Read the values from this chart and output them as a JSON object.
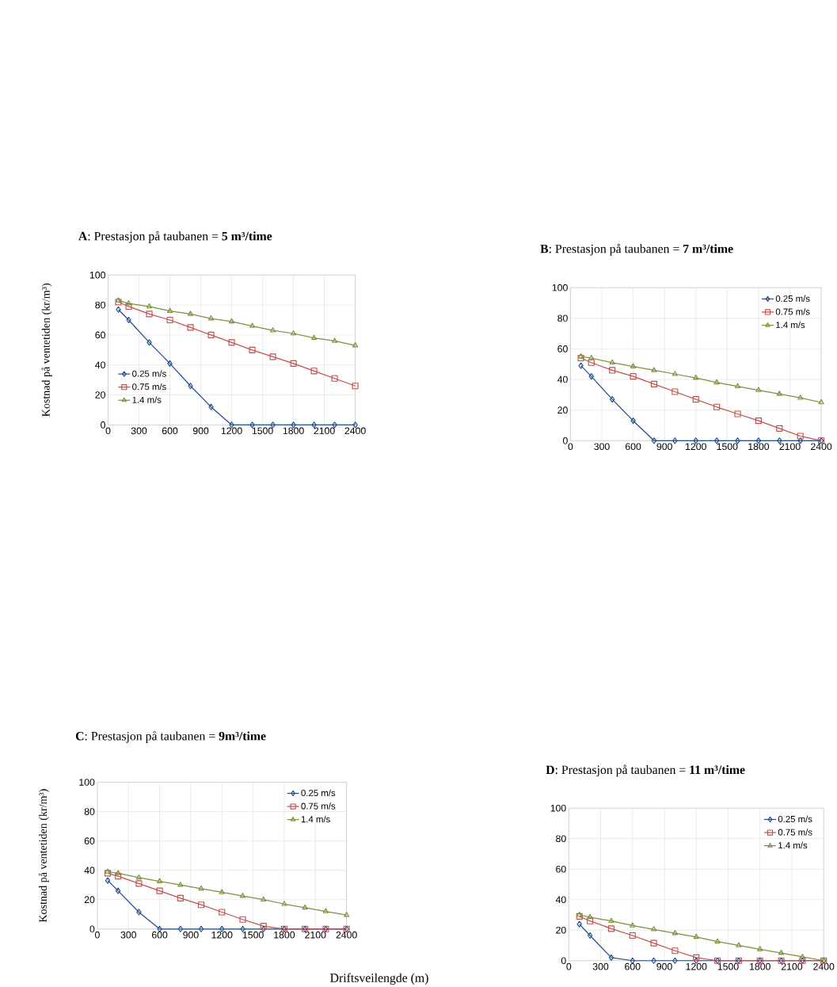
{
  "chart_data": [
    {
      "type": "line",
      "title": "**A**:  Prestasjon på taubanen = **5 m³/time**",
      "ylabel": "Kostnad på ventetiden (kr/m³)",
      "x": [
        100,
        200,
        400,
        600,
        800,
        1000,
        1200,
        1400,
        1600,
        1800,
        2000,
        2200,
        2400
      ],
      "xlim": [
        0,
        2400
      ],
      "xticks": [
        0,
        300,
        600,
        900,
        1200,
        1500,
        1800,
        2100,
        2400
      ],
      "ylim": [
        0,
        100
      ],
      "yticks": [
        0,
        20,
        40,
        60,
        80,
        100
      ],
      "grid": true,
      "legend": "left",
      "series": [
        {
          "name": "0.25 m/s",
          "color": "#1f4e8c",
          "marker": "diamond",
          "values": [
            77,
            70,
            55,
            41,
            26,
            12,
            0,
            0,
            0,
            0,
            0,
            0,
            0
          ]
        },
        {
          "name": "0.75 m/s",
          "color": "#c0504d",
          "marker": "square",
          "values": [
            82,
            79,
            74,
            70,
            65,
            60,
            55,
            50,
            45.5,
            41,
            36,
            31,
            26
          ]
        },
        {
          "name": "1.4 m/s",
          "color": "#77933c",
          "marker": "triangle",
          "values": [
            83,
            81,
            79,
            76,
            74,
            71,
            69,
            66,
            63,
            61,
            58,
            56,
            53
          ]
        }
      ]
    },
    {
      "type": "line",
      "title": "**B**:  Prestasjon på taubanen = **7 m³/time**",
      "x": [
        100,
        200,
        400,
        600,
        800,
        1000,
        1200,
        1400,
        1600,
        1800,
        2000,
        2200,
        2400
      ],
      "xlim": [
        0,
        2400
      ],
      "xticks": [
        0,
        300,
        600,
        900,
        1200,
        1500,
        1800,
        2100,
        2400
      ],
      "ylim": [
        0,
        100
      ],
      "yticks": [
        0,
        20,
        40,
        60,
        80,
        100
      ],
      "grid": true,
      "legend": "top right",
      "series": [
        {
          "name": "0.25 m/s",
          "color": "#1f4e8c",
          "marker": "diamond",
          "values": [
            49,
            42,
            27,
            13,
            0,
            0,
            0,
            0,
            0,
            0,
            0,
            0,
            0
          ]
        },
        {
          "name": "0.75 m/s",
          "color": "#c0504d",
          "marker": "square",
          "values": [
            54,
            51,
            46,
            42,
            37,
            32,
            27,
            22,
            17.5,
            13,
            8,
            3,
            0
          ]
        },
        {
          "name": "1.4 m/s",
          "color": "#77933c",
          "marker": "triangle",
          "values": [
            55,
            54,
            51,
            48.5,
            46,
            43.5,
            41,
            38,
            35.5,
            33,
            30.5,
            28,
            25
          ]
        }
      ]
    },
    {
      "type": "line",
      "title": "**C**:  Prestasjon på taubanen =  **9m³/time**",
      "ylabel": "Kostnad på ventetiden (kr/m³)",
      "xlabel": "Driftsveilengde (m)",
      "x": [
        100,
        200,
        400,
        600,
        800,
        1000,
        1200,
        1400,
        1600,
        1800,
        2000,
        2200,
        2400
      ],
      "xlim": [
        0,
        2400
      ],
      "xticks": [
        0,
        300,
        600,
        900,
        1200,
        1500,
        1800,
        2100,
        2400
      ],
      "ylim": [
        0,
        100
      ],
      "yticks": [
        0,
        20,
        40,
        60,
        80,
        100
      ],
      "grid": true,
      "legend": "top right",
      "series": [
        {
          "name": "0.25 m/s",
          "color": "#1f4e8c",
          "marker": "diamond",
          "values": [
            33,
            26,
            11.5,
            0,
            0,
            0,
            0,
            0,
            0,
            0,
            0,
            0,
            0
          ]
        },
        {
          "name": "0.75 m/s",
          "color": "#c0504d",
          "marker": "square",
          "values": [
            38,
            36,
            31,
            26,
            21,
            16.5,
            11.5,
            6.5,
            2,
            0,
            0,
            0,
            0
          ]
        },
        {
          "name": "1.4 m/s",
          "color": "#77933c",
          "marker": "triangle",
          "values": [
            39,
            38,
            35,
            32.5,
            30,
            27.5,
            25,
            22.5,
            20,
            17,
            14.5,
            12,
            9.5
          ]
        }
      ]
    },
    {
      "type": "line",
      "title": "**D**:  Prestasjon på taubanen = **11 m³/time**",
      "x": [
        100,
        200,
        400,
        600,
        800,
        1000,
        1200,
        1400,
        1600,
        1800,
        2000,
        2200,
        2400
      ],
      "xlim": [
        0,
        2400
      ],
      "xticks": [
        0,
        300,
        600,
        900,
        1200,
        1500,
        1800,
        2100,
        2400
      ],
      "ylim": [
        0,
        100
      ],
      "yticks": [
        0,
        20,
        40,
        60,
        80,
        100
      ],
      "grid": true,
      "legend": "top right",
      "series": [
        {
          "name": "0.25 m/s",
          "color": "#1f4e8c",
          "marker": "diamond",
          "values": [
            24,
            16.5,
            2,
            0,
            0,
            0,
            0,
            0,
            0,
            0,
            0,
            0,
            0
          ]
        },
        {
          "name": "0.75 m/s",
          "color": "#c0504d",
          "marker": "square",
          "values": [
            29,
            26,
            21,
            16.5,
            11.5,
            6.5,
            2,
            0,
            0,
            0,
            0,
            0,
            0
          ]
        },
        {
          "name": "1.4 m/s",
          "color": "#77933c",
          "marker": "triangle",
          "values": [
            30,
            28.5,
            26,
            23,
            20.5,
            18,
            15.5,
            12.5,
            10,
            7.5,
            5,
            2.5,
            0
          ]
        }
      ]
    }
  ]
}
